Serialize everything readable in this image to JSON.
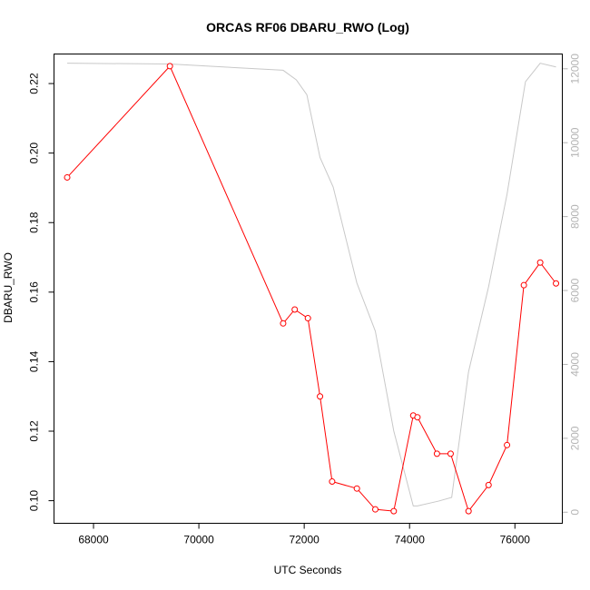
{
  "chart_data": {
    "type": "line",
    "title": "ORCAS RF06 DBARU_RWO (Log)",
    "xlabel": "UTC Seconds",
    "ylabel": "DBARU_RWO",
    "xlim": [
      67250,
      76900
    ],
    "ylim": [
      0.0935,
      0.2285
    ],
    "y2lim": [
      -300,
      12400
    ],
    "x_ticks": [
      68000,
      70000,
      72000,
      74000,
      76000
    ],
    "y_ticks": [
      0.1,
      0.12,
      0.14,
      0.16,
      0.18,
      0.2,
      0.22
    ],
    "y2_ticks": [
      0,
      2000,
      4000,
      6000,
      8000,
      10000,
      12000
    ],
    "x_tick_labels": [
      "68000",
      "70000",
      "72000",
      "74000",
      "76000"
    ],
    "y_tick_labels": [
      "0.10",
      "0.12",
      "0.14",
      "0.16",
      "0.18",
      "0.20",
      "0.22"
    ],
    "y2_tick_labels": [
      "0",
      "2000",
      "4000",
      "6000",
      "8000",
      "10000",
      "12000"
    ],
    "series": [
      {
        "axis": "left",
        "color": "#ff0000",
        "marker": "circle",
        "points": [
          [
            67500,
            0.193
          ],
          [
            69450,
            0.225
          ],
          [
            71600,
            0.151
          ],
          [
            71820,
            0.155
          ],
          [
            72070,
            0.1525
          ],
          [
            72300,
            0.13
          ],
          [
            72530,
            0.1055
          ],
          [
            73000,
            0.1035
          ],
          [
            73350,
            0.0975
          ],
          [
            73700,
            0.097
          ],
          [
            74070,
            0.1245
          ],
          [
            74150,
            0.124
          ],
          [
            74520,
            0.1135
          ],
          [
            74780,
            0.1135
          ],
          [
            75120,
            0.097
          ],
          [
            75500,
            0.1045
          ],
          [
            75850,
            0.116
          ],
          [
            76170,
            0.162
          ],
          [
            76480,
            0.1685
          ],
          [
            76780,
            0.1625
          ]
        ]
      },
      {
        "axis": "right",
        "color": "#c8c8c8",
        "marker": "none",
        "points": [
          [
            67500,
            12150
          ],
          [
            69450,
            12130
          ],
          [
            71600,
            11960
          ],
          [
            71850,
            11700
          ],
          [
            72050,
            11300
          ],
          [
            72300,
            9600
          ],
          [
            72550,
            8800
          ],
          [
            73000,
            6200
          ],
          [
            73350,
            4900
          ],
          [
            73700,
            2200
          ],
          [
            74070,
            170
          ],
          [
            74150,
            170
          ],
          [
            74550,
            300
          ],
          [
            74800,
            400
          ],
          [
            75120,
            3800
          ],
          [
            75500,
            6100
          ],
          [
            75850,
            8600
          ],
          [
            76200,
            11650
          ],
          [
            76480,
            12150
          ],
          [
            76780,
            12050
          ]
        ]
      }
    ]
  }
}
